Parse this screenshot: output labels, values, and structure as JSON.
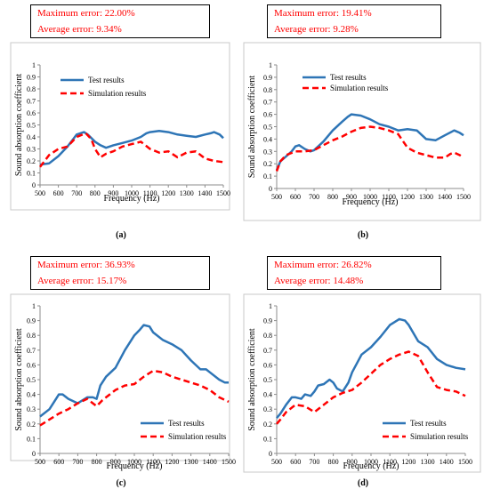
{
  "colors": {
    "test": "#2E75B6",
    "simulation": "#FF0000",
    "error_text": "#FF0000",
    "axis": "#8c8c8c",
    "frame": "#c8c8c8",
    "box_border": "#000000"
  },
  "chart_data": [
    {
      "type": "line",
      "panel_label": "(a)",
      "errors": {
        "max_line": "Maximum error: 22.00%",
        "avg_line": "Average error: 9.34%"
      },
      "xlabel": "Frequency (Hz)",
      "ylabel": "Sound absorption coefficient",
      "xlim": [
        500,
        1500
      ],
      "ylim": [
        0,
        1
      ],
      "xticks": [
        "500",
        "600",
        "700",
        "800",
        "900",
        "1000",
        "1100",
        "1200",
        "1300",
        "1400",
        "1500"
      ],
      "yticks": [
        "0",
        "0.1",
        "0.2",
        "0.3",
        "0.4",
        "0.5",
        "0.6",
        "0.7",
        "0.8",
        "0.9",
        "1"
      ],
      "grid": false,
      "legend": "top-left",
      "series": [
        {
          "name": "Test results",
          "style": "solid",
          "x": [
            500,
            550,
            600,
            650,
            680,
            700,
            720,
            740,
            760,
            780,
            800,
            830,
            860,
            900,
            950,
            1000,
            1050,
            1080,
            1100,
            1150,
            1200,
            1250,
            1300,
            1350,
            1400,
            1430,
            1450,
            1480,
            1500
          ],
          "y": [
            0.17,
            0.18,
            0.24,
            0.32,
            0.38,
            0.42,
            0.43,
            0.44,
            0.42,
            0.39,
            0.36,
            0.33,
            0.31,
            0.33,
            0.35,
            0.37,
            0.4,
            0.43,
            0.44,
            0.45,
            0.44,
            0.42,
            0.41,
            0.4,
            0.42,
            0.43,
            0.44,
            0.42,
            0.39
          ]
        },
        {
          "name": "Simulation results",
          "style": "dashed",
          "x": [
            500,
            550,
            600,
            650,
            700,
            750,
            780,
            800,
            830,
            860,
            900,
            950,
            1000,
            1050,
            1100,
            1150,
            1200,
            1250,
            1300,
            1350,
            1400,
            1450,
            1500
          ],
          "y": [
            0.15,
            0.25,
            0.3,
            0.32,
            0.4,
            0.43,
            0.38,
            0.3,
            0.23,
            0.26,
            0.28,
            0.32,
            0.34,
            0.36,
            0.3,
            0.27,
            0.28,
            0.23,
            0.27,
            0.28,
            0.22,
            0.2,
            0.19
          ]
        }
      ]
    },
    {
      "type": "line",
      "panel_label": "(b)",
      "errors": {
        "max_line": "Maximum error: 19.41%",
        "avg_line": "Average error: 9.28%"
      },
      "xlabel": "Frequency (Hz)",
      "ylabel": "Sound absorption coefficient",
      "xlim": [
        500,
        1500
      ],
      "ylim": [
        0,
        1
      ],
      "xticks": [
        "500",
        "600",
        "700",
        "800",
        "900",
        "1000",
        "1100",
        "1200",
        "1300",
        "1400",
        "1500"
      ],
      "yticks": [
        "0",
        "0.1",
        "0.2",
        "0.3",
        "0.4",
        "0.5",
        "0.6",
        "0.7",
        "0.8",
        "0.9",
        "1"
      ],
      "grid": false,
      "legend": "top-left",
      "series": [
        {
          "name": "Test results",
          "style": "solid",
          "x": [
            500,
            520,
            550,
            580,
            600,
            620,
            650,
            680,
            700,
            750,
            800,
            850,
            880,
            900,
            950,
            1000,
            1050,
            1100,
            1150,
            1200,
            1250,
            1300,
            1350,
            1400,
            1450,
            1480,
            1500
          ],
          "y": [
            0.15,
            0.22,
            0.26,
            0.3,
            0.34,
            0.35,
            0.32,
            0.3,
            0.31,
            0.38,
            0.47,
            0.54,
            0.58,
            0.6,
            0.59,
            0.56,
            0.52,
            0.5,
            0.47,
            0.48,
            0.47,
            0.4,
            0.39,
            0.43,
            0.47,
            0.45,
            0.43
          ]
        },
        {
          "name": "Simulation results",
          "style": "dashed",
          "x": [
            500,
            520,
            550,
            600,
            650,
            700,
            750,
            800,
            850,
            900,
            950,
            1000,
            1050,
            1100,
            1150,
            1200,
            1250,
            1300,
            1350,
            1400,
            1430,
            1450,
            1480,
            1500
          ],
          "y": [
            0.14,
            0.22,
            0.27,
            0.3,
            0.3,
            0.31,
            0.35,
            0.39,
            0.42,
            0.46,
            0.49,
            0.5,
            0.49,
            0.47,
            0.44,
            0.33,
            0.29,
            0.27,
            0.25,
            0.25,
            0.28,
            0.29,
            0.27,
            0.25
          ]
        }
      ]
    },
    {
      "type": "line",
      "panel_label": "(c)",
      "errors": {
        "max_line": "Maximum error: 36.93%",
        "avg_line": "Average error: 15.17%"
      },
      "xlabel": "Frequency (Hz)",
      "ylabel": "Sound absorption coefficient",
      "xlim": [
        500,
        1500
      ],
      "ylim": [
        0,
        1
      ],
      "xticks": [
        "500",
        "600",
        "700",
        "800",
        "900",
        "1000",
        "1100",
        "1200",
        "1300",
        "1400",
        "1500"
      ],
      "yticks": [
        "0",
        "0.1",
        "0.2",
        "0.3",
        "0.4",
        "0.5",
        "0.6",
        "0.7",
        "0.8",
        "0.9",
        "1"
      ],
      "grid": false,
      "legend": "bottom-right",
      "series": [
        {
          "name": "Test results",
          "style": "solid",
          "x": [
            500,
            550,
            580,
            600,
            620,
            650,
            700,
            750,
            780,
            800,
            820,
            850,
            900,
            950,
            1000,
            1030,
            1050,
            1080,
            1100,
            1150,
            1200,
            1250,
            1300,
            1350,
            1380,
            1400,
            1450,
            1480,
            1500
          ],
          "y": [
            0.25,
            0.3,
            0.36,
            0.4,
            0.4,
            0.37,
            0.34,
            0.38,
            0.38,
            0.37,
            0.46,
            0.52,
            0.58,
            0.7,
            0.8,
            0.84,
            0.87,
            0.86,
            0.82,
            0.77,
            0.74,
            0.7,
            0.63,
            0.57,
            0.57,
            0.55,
            0.5,
            0.48,
            0.48
          ]
        },
        {
          "name": "Simulation results",
          "style": "dashed",
          "x": [
            500,
            550,
            600,
            650,
            700,
            750,
            780,
            800,
            830,
            850,
            900,
            950,
            1000,
            1050,
            1100,
            1150,
            1200,
            1250,
            1300,
            1350,
            1400,
            1450,
            1500
          ],
          "y": [
            0.19,
            0.23,
            0.27,
            0.3,
            0.34,
            0.37,
            0.34,
            0.32,
            0.36,
            0.38,
            0.43,
            0.46,
            0.47,
            0.52,
            0.56,
            0.55,
            0.52,
            0.5,
            0.48,
            0.46,
            0.43,
            0.38,
            0.35
          ]
        }
      ]
    },
    {
      "type": "line",
      "panel_label": "(d)",
      "errors": {
        "max_line": "Maximum error: 26.82%",
        "avg_line": "Average error: 14.48%"
      },
      "xlabel": "Frequency (Hz)",
      "ylabel": "Sound absorption coefficient",
      "xlim": [
        500,
        1500
      ],
      "ylim": [
        0,
        1
      ],
      "xticks": [
        "500",
        "600",
        "700",
        "800",
        "900",
        "1000",
        "1100",
        "1200",
        "1300",
        "1400",
        "1500"
      ],
      "yticks": [
        "0",
        "0.1",
        "0.2",
        "0.3",
        "0.4",
        "0.5",
        "0.6",
        "0.7",
        "0.8",
        "0.9",
        "1"
      ],
      "grid": false,
      "legend": "bottom-right",
      "series": [
        {
          "name": "Test results",
          "style": "solid",
          "x": [
            500,
            520,
            550,
            580,
            600,
            630,
            650,
            680,
            700,
            720,
            750,
            780,
            800,
            820,
            850,
            880,
            900,
            950,
            1000,
            1050,
            1100,
            1150,
            1180,
            1200,
            1250,
            1300,
            1350,
            1400,
            1450,
            1500
          ],
          "y": [
            0.24,
            0.27,
            0.33,
            0.38,
            0.38,
            0.37,
            0.4,
            0.39,
            0.42,
            0.46,
            0.47,
            0.5,
            0.48,
            0.44,
            0.42,
            0.48,
            0.55,
            0.67,
            0.72,
            0.79,
            0.87,
            0.91,
            0.9,
            0.87,
            0.76,
            0.72,
            0.64,
            0.6,
            0.58,
            0.57
          ]
        },
        {
          "name": "Simulation results",
          "style": "dashed",
          "x": [
            500,
            520,
            550,
            600,
            650,
            700,
            750,
            800,
            850,
            900,
            950,
            1000,
            1050,
            1100,
            1150,
            1200,
            1250,
            1300,
            1350,
            1400,
            1450,
            1500
          ],
          "y": [
            0.2,
            0.23,
            0.28,
            0.33,
            0.32,
            0.28,
            0.33,
            0.38,
            0.41,
            0.43,
            0.48,
            0.54,
            0.6,
            0.64,
            0.67,
            0.69,
            0.66,
            0.55,
            0.45,
            0.43,
            0.42,
            0.39
          ]
        }
      ]
    }
  ]
}
